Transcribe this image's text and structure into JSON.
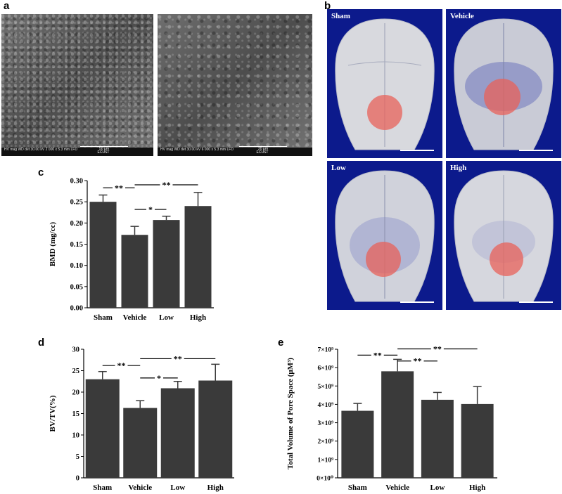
{
  "panel_labels": {
    "a": "a",
    "b": "b",
    "c": "c",
    "d": "d",
    "e": "e"
  },
  "sem": [
    {
      "info": "HV  mag  WD  det\n30.00 kV 2 000 x 5.3 mm LFD",
      "scale": "50 μm",
      "footer": "ECUST"
    },
    {
      "info": "HV  mag  WD  det\n30.00 kV 6 000 x 5.3 mm LFD",
      "scale": "20 μm",
      "footer": "ECUST"
    }
  ],
  "skulls": [
    {
      "label": "Sham"
    },
    {
      "label": "Vehicle"
    },
    {
      "label": "Low"
    },
    {
      "label": "High"
    }
  ],
  "chart_data": [
    {
      "panel": "c",
      "type": "bar",
      "categories": [
        "Sham",
        "Vehicle",
        "Low",
        "High"
      ],
      "values": [
        0.25,
        0.172,
        0.207,
        0.24
      ],
      "errors": [
        0.016,
        0.02,
        0.009,
        0.032
      ],
      "ylabel": "BMD (mg/cc)",
      "ylim": [
        0,
        0.3
      ],
      "ticks": [
        0,
        0.05,
        0.1,
        0.15,
        0.2,
        0.25,
        0.3
      ],
      "tick_labels": [
        "0.00",
        "0.05",
        "0.10",
        "0.15",
        "0.20",
        "0.25",
        "0.30"
      ],
      "significance": [
        {
          "from": 0,
          "to": 1,
          "label": "**",
          "y": 0.283
        },
        {
          "from": 1,
          "to": 3,
          "label": "**",
          "y": 0.29
        },
        {
          "from": 1,
          "to": 2,
          "label": "*",
          "y": 0.232
        }
      ]
    },
    {
      "panel": "d",
      "type": "bar",
      "categories": [
        "Sham",
        "Vehicle",
        "Low",
        "High"
      ],
      "values": [
        23.0,
        16.3,
        20.9,
        22.7
      ],
      "errors": [
        1.8,
        1.7,
        1.6,
        3.8
      ],
      "ylabel": "BV/TV(%)",
      "ylim": [
        0,
        30
      ],
      "ticks": [
        0,
        5,
        10,
        15,
        20,
        25,
        30
      ],
      "tick_labels": [
        "0",
        "5",
        "10",
        "15",
        "20",
        "25",
        "30"
      ],
      "significance": [
        {
          "from": 0,
          "to": 1,
          "label": "**",
          "y": 26.2
        },
        {
          "from": 1,
          "to": 3,
          "label": "**",
          "y": 27.8
        },
        {
          "from": 1,
          "to": 2,
          "label": "*",
          "y": 23.3
        }
      ]
    },
    {
      "panel": "e",
      "type": "bar",
      "categories": [
        "Sham",
        "Vehicle",
        "Low",
        "High"
      ],
      "values": [
        3.65,
        5.8,
        4.25,
        4.02
      ],
      "errors": [
        0.4,
        0.65,
        0.4,
        0.95
      ],
      "ylabel": "Total Volume of Pore Space (μM³)",
      "ylim": [
        0,
        7
      ],
      "ticks": [
        0,
        1,
        2,
        3,
        4,
        5,
        6,
        7
      ],
      "tick_labels": [
        "0×10⁰",
        "1×10⁹",
        "2×10⁹",
        "3×10⁹",
        "4×10⁹",
        "5×10⁹",
        "6×10⁹",
        "7×10⁹"
      ],
      "significance": [
        {
          "from": 0,
          "to": 1,
          "label": "**",
          "y": 6.68
        },
        {
          "from": 1,
          "to": 2,
          "label": "**",
          "y": 6.36
        },
        {
          "from": 1,
          "to": 3,
          "label": "**",
          "y": 7.02
        }
      ]
    }
  ]
}
